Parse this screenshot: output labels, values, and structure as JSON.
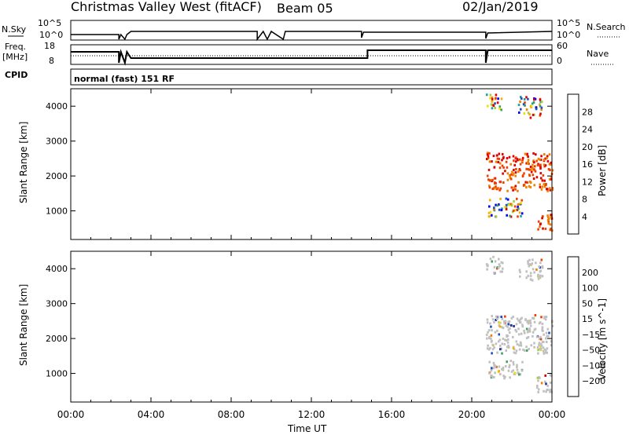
{
  "header": {
    "title": "Christmas Valley West (fitACF)",
    "beam": "Beam 05",
    "date": "02/Jan/2019"
  },
  "status_panel": {
    "nsky_label": "N.Sky",
    "nsky_ticks": [
      "10^5",
      "10^0"
    ],
    "nsearch_label": "N.Search",
    "nsearch_ticks": [
      "10^5",
      "10^0"
    ],
    "freq_label": "Freq.",
    "freq_unit": "[MHz]",
    "freq_ticks": [
      "18",
      "8"
    ],
    "nave_label": "Nave",
    "nave_ticks": [
      "60",
      "0"
    ],
    "cpid_label": "CPID",
    "cpid_value": "normal (fast) 151 RF"
  },
  "time_axis": {
    "label": "Time UT",
    "ticks": [
      "00:00",
      "04:00",
      "08:00",
      "12:00",
      "16:00",
      "20:00",
      "00:00"
    ],
    "range_hours": [
      0,
      24
    ]
  },
  "chart_data": [
    {
      "type": "heatmap",
      "name": "power",
      "ylabel": "Slant Range [km]",
      "ylim": [
        180,
        4500
      ],
      "yticks": [
        1000,
        2000,
        3000,
        4000
      ],
      "colorbar_label": "Power [dB]",
      "colorbar_ticks": [
        "28",
        "24",
        "20",
        "16",
        "12",
        "8",
        "4"
      ],
      "colors": [
        "#0000ff",
        "#2050c0",
        "#20a0a0",
        "#40a060",
        "#a0d040",
        "#f0e000",
        "#f0b000",
        "#f08000",
        "#f04000",
        "#e00000"
      ],
      "scatter_regions": [
        {
          "t_start": 20.7,
          "t_end": 21.5,
          "range": [
            3900,
            4400
          ]
        },
        {
          "t_start": 22.3,
          "t_end": 23.5,
          "range": [
            3700,
            4300
          ]
        },
        {
          "t_start": 20.7,
          "t_end": 24,
          "range": [
            1600,
            2700
          ]
        },
        {
          "t_start": 20.8,
          "t_end": 22.5,
          "range": [
            850,
            1400
          ]
        },
        {
          "t_start": 23.2,
          "t_end": 24,
          "range": [
            450,
            1000
          ]
        }
      ]
    },
    {
      "type": "heatmap",
      "name": "velocity",
      "ylabel": "Slant Range [km]",
      "ylim": [
        180,
        4500
      ],
      "yticks": [
        1000,
        2000,
        3000,
        4000
      ],
      "colorbar_label": "Velocity [m s^-1]",
      "colorbar_ticks": [
        "200",
        "100",
        "50",
        "15",
        "−15",
        "−50",
        "−100",
        "−200"
      ],
      "colors": [
        "#e00000",
        "#f04000",
        "#f08000",
        "#f0b000",
        "#f0e000",
        "#c0c0c0",
        "#a0d040",
        "#40a060",
        "#2050c0",
        "#2030a0"
      ],
      "scatter_regions": [
        {
          "t_start": 20.7,
          "t_end": 21.5,
          "range": [
            3900,
            4400
          ]
        },
        {
          "t_start": 22.3,
          "t_end": 23.5,
          "range": [
            3700,
            4300
          ]
        },
        {
          "t_start": 20.7,
          "t_end": 24,
          "range": [
            1600,
            2700
          ]
        },
        {
          "t_start": 20.8,
          "t_end": 22.5,
          "range": [
            850,
            1400
          ]
        },
        {
          "t_start": 23.2,
          "t_end": 24,
          "range": [
            450,
            1000
          ]
        }
      ]
    }
  ]
}
